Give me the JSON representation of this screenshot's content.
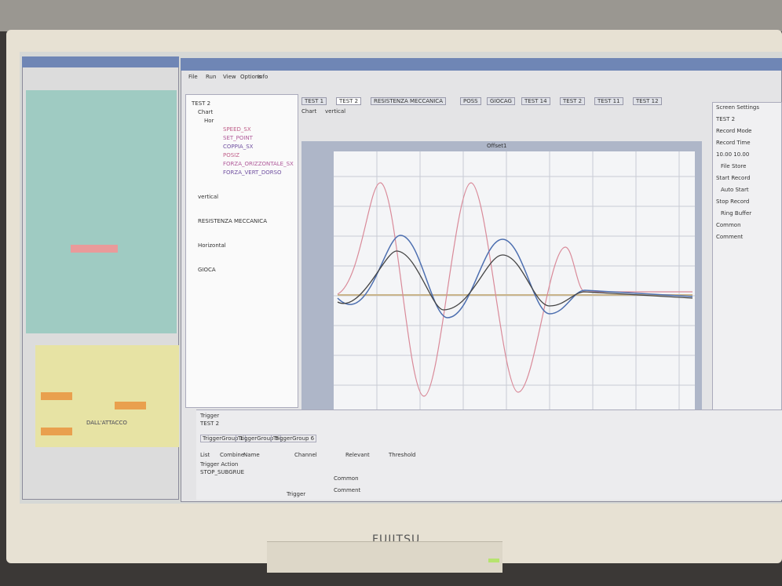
{
  "menu": [
    "File",
    "Run",
    "View",
    "Options",
    "Info"
  ],
  "tabs": [
    "TEST 1",
    "TEST 2",
    "RESISTENZA MECCANICA",
    "POSS",
    "GIOCAG",
    "TEST 14",
    "TEST 2",
    "TEST 11",
    "TEST 12"
  ],
  "chart_tabs": [
    "Chart",
    "vertical"
  ],
  "chart_title": "Offset1",
  "tree": {
    "root": "TEST 2",
    "chart": "Chart",
    "horizontal": "Hor",
    "channels": [
      "SPEED_SX",
      "SET_POINT",
      "COPPIA_SX",
      "POSIZ",
      "FORZA_ORIZZONTALE_SX",
      "FORZA_VERT_DORSO"
    ],
    "groups": [
      "vertical",
      "RESISTENZA MECCANICA",
      "Horizontal",
      "GIOCA"
    ]
  },
  "settings": {
    "title": "Screen Settings",
    "name": "TEST 2",
    "record_mode": "Record Mode",
    "record_time": "Record Time",
    "time_value": "10.00 10.00",
    "file_store": "File Store",
    "start_record": "Start Record",
    "auto_start": "Auto Start",
    "stop_record": "Stop Record",
    "ring_buffer": "Ring Buffer",
    "common": "Common",
    "comment": "Comment"
  },
  "trigger": {
    "title": "Trigger",
    "name": "TEST 2",
    "groups": [
      "TriggerGroup 1",
      "TriggerGroup 5",
      "TriggerGroup 6"
    ],
    "columns": [
      "List",
      "Combine",
      "Name",
      "Channel",
      "Relevant",
      "Threshold"
    ],
    "action_label": "Trigger Action",
    "action": "STOP_SUBGRUE",
    "common": "Common",
    "comment": "Comment",
    "tab": "Trigger"
  },
  "left_panel": {
    "heading": "DALL'ATTACCO"
  },
  "brand": "FUJITSU"
}
